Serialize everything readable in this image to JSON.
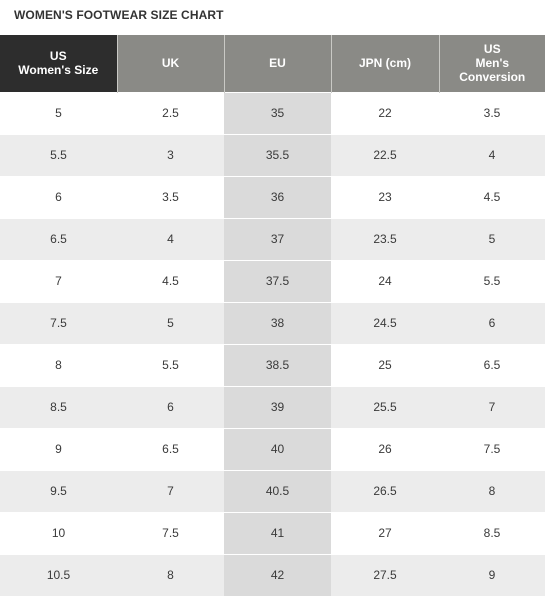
{
  "chart": {
    "title": "WOMEN'S FOOTWEAR SIZE CHART",
    "headers": [
      {
        "line1": "US",
        "line2": "Women's Size",
        "line3": ""
      },
      {
        "line1": "UK",
        "line2": "",
        "line3": ""
      },
      {
        "line1": "EU",
        "line2": "",
        "line3": ""
      },
      {
        "line1": "JPN (cm)",
        "line2": "",
        "line3": ""
      },
      {
        "line1": "US",
        "line2": "Men's",
        "line3": "Conversion"
      }
    ],
    "rows": [
      [
        "5",
        "2.5",
        "35",
        "22",
        "3.5"
      ],
      [
        "5.5",
        "3",
        "35.5",
        "22.5",
        "4"
      ],
      [
        "6",
        "3.5",
        "36",
        "23",
        "4.5"
      ],
      [
        "6.5",
        "4",
        "37",
        "23.5",
        "5"
      ],
      [
        "7",
        "4.5",
        "37.5",
        "24",
        "5.5"
      ],
      [
        "7.5",
        "5",
        "38",
        "24.5",
        "6"
      ],
      [
        "8",
        "5.5",
        "38.5",
        "25",
        "6.5"
      ],
      [
        "8.5",
        "6",
        "39",
        "25.5",
        "7"
      ],
      [
        "9",
        "6.5",
        "40",
        "26",
        "7.5"
      ],
      [
        "9.5",
        "7",
        "40.5",
        "26.5",
        "8"
      ],
      [
        "10",
        "7.5",
        "41",
        "27",
        "8.5"
      ],
      [
        "10.5",
        "8",
        "42",
        "27.5",
        "9"
      ]
    ]
  }
}
